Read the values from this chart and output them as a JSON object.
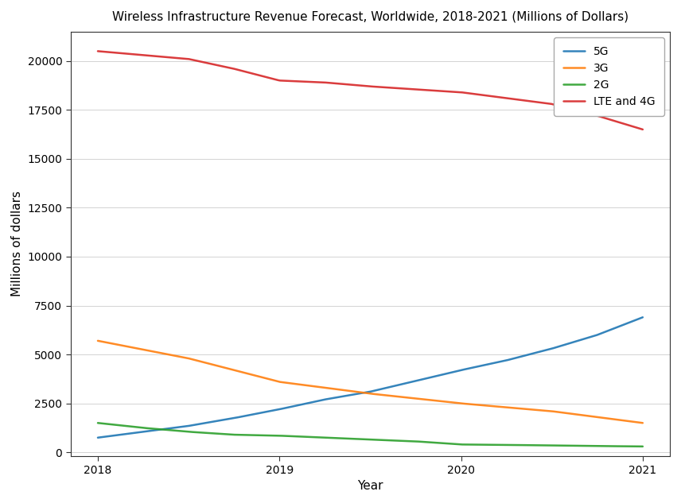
{
  "years": [
    2018,
    2018.25,
    2018.5,
    2018.75,
    2019,
    2019.25,
    2019.5,
    2019.75,
    2020,
    2020.25,
    2020.5,
    2020.75,
    2021
  ],
  "series": {
    "5G": {
      "values": [
        750,
        1050,
        1350,
        1750,
        2200,
        2700,
        3100,
        3650,
        4200,
        4700,
        5300,
        6000,
        6900
      ],
      "color": "#1f77b4",
      "linewidth": 1.8
    },
    "3G": {
      "values": [
        5700,
        5250,
        4800,
        4200,
        3600,
        3300,
        3000,
        2750,
        2500,
        2300,
        2100,
        1800,
        1500
      ],
      "color": "#ff7f0e",
      "linewidth": 1.8
    },
    "2G": {
      "values": [
        1500,
        1250,
        1050,
        900,
        850,
        750,
        650,
        560,
        400,
        380,
        350,
        320,
        300
      ],
      "color": "#2ca02c",
      "linewidth": 1.8
    },
    "LTE and 4G": {
      "values": [
        20500,
        20300,
        20100,
        19600,
        19000,
        18900,
        18700,
        18550,
        18400,
        18100,
        17800,
        17200,
        16500
      ],
      "color": "#d62728",
      "linewidth": 1.8
    }
  },
  "title": "Wireless Infrastructure Revenue Forecast, Worldwide, 2018-2021 (Millions of Dollars)",
  "xlabel": "Year",
  "ylabel": "Millions of dollars",
  "ylim": [
    -200,
    21500
  ],
  "yticks": [
    0,
    2500,
    5000,
    7500,
    10000,
    12500,
    15000,
    17500,
    20000
  ],
  "xlim": [
    2017.85,
    2021.15
  ],
  "xticks": [
    2018,
    2019,
    2020,
    2021
  ],
  "legend_order": [
    "5G",
    "3G",
    "2G",
    "LTE and 4G"
  ],
  "legend_loc": "upper right",
  "background_color": "#ffffff",
  "title_fontsize": 11,
  "axis_label_fontsize": 11,
  "tick_fontsize": 10,
  "legend_fontsize": 10
}
